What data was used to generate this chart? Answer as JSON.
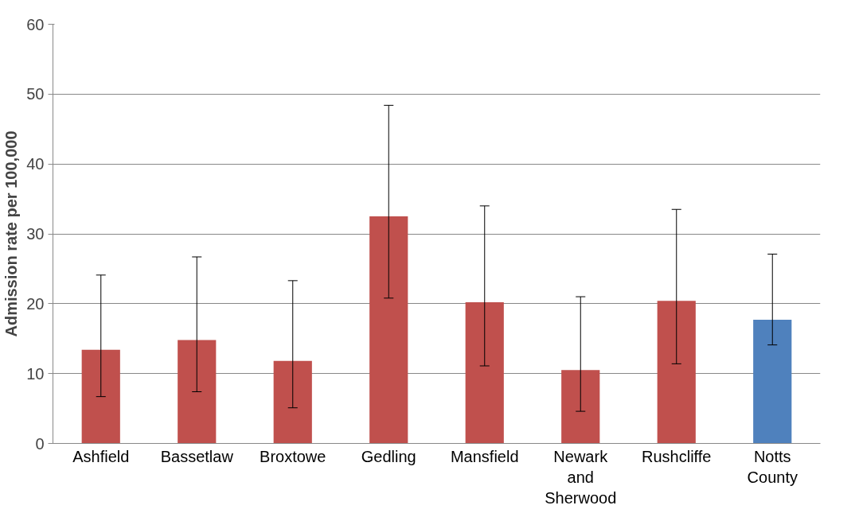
{
  "chart_data": {
    "type": "bar",
    "ylabel": "Admission rate per 100,000",
    "categories": [
      "Ashfield",
      "Bassetlaw",
      "Broxtowe",
      "Gedling",
      "Mansfield",
      "Newark and Sherwood",
      "Rushcliffe",
      "Notts County"
    ],
    "values": [
      13.4,
      14.8,
      11.8,
      32.5,
      20.2,
      10.5,
      20.4,
      17.7
    ],
    "colors": [
      "#c0504d",
      "#c0504d",
      "#c0504d",
      "#c0504d",
      "#c0504d",
      "#c0504d",
      "#c0504d",
      "#4f81bd"
    ],
    "errors": [
      [
        6.7,
        24.1
      ],
      [
        7.4,
        26.7
      ],
      [
        5.1,
        23.3
      ],
      [
        20.8,
        48.4
      ],
      [
        11.1,
        34.0
      ],
      [
        4.6,
        21.0
      ],
      [
        11.4,
        33.5
      ],
      [
        14.1,
        27.1
      ]
    ],
    "ylim": [
      0,
      60
    ],
    "yticks": [
      0,
      10,
      20,
      30,
      40,
      50,
      60
    ],
    "grid": "y"
  }
}
